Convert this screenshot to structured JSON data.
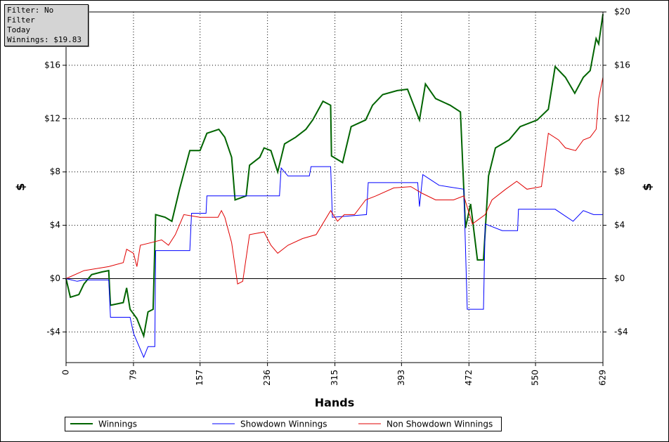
{
  "chart_data": {
    "type": "line",
    "info_box": [
      "Filter: No Filter",
      "Today",
      "Winnings: $19.83"
    ],
    "xlabel": "Hands",
    "ylabel": "$",
    "y2label": "$",
    "xlim": [
      0,
      629
    ],
    "xticks": [
      0,
      79,
      157,
      236,
      315,
      393,
      472,
      550,
      629
    ],
    "ylim": [
      -6.3,
      20
    ],
    "yticks": [
      {
        "value": -4,
        "label": "-$4"
      },
      {
        "value": 0,
        "label": "$0"
      },
      {
        "value": 4,
        "label": "$4"
      },
      {
        "value": 8,
        "label": "$8"
      },
      {
        "value": 12,
        "label": "$12"
      },
      {
        "value": 16,
        "label": "$16"
      },
      {
        "value": 20,
        "label": "$20"
      }
    ],
    "y2lim": [
      -6.3,
      20
    ],
    "y2ticks": [
      {
        "value": -4,
        "label": "-$4"
      },
      {
        "value": 0,
        "label": "$0"
      },
      {
        "value": 4,
        "label": "$4"
      },
      {
        "value": 8,
        "label": "$8"
      },
      {
        "value": 12,
        "label": "$12"
      },
      {
        "value": 16,
        "label": "$16"
      },
      {
        "value": 20,
        "label": "$20"
      }
    ],
    "grid": true,
    "series": [
      {
        "name": "Winnings",
        "color": "#006400",
        "x": [
          0,
          5,
          15,
          21,
          30,
          42,
          50,
          52,
          67,
          71,
          75,
          83,
          91,
          96,
          102,
          105,
          116,
          124,
          133,
          145,
          157,
          165,
          179,
          186,
          194,
          198,
          211,
          215,
          227,
          232,
          240,
          248,
          256,
          269,
          281,
          289,
          301,
          310,
          311,
          324,
          334,
          351,
          359,
          371,
          388,
          400,
          414,
          421,
          433,
          450,
          462,
          468,
          474,
          482,
          489,
          495,
          503,
          519,
          532,
          552,
          565,
          573,
          585,
          596,
          606,
          614,
          621,
          624,
          629
        ],
        "values": [
          0,
          -1.4,
          -1.2,
          -0.4,
          0.3,
          0.5,
          0.6,
          -2,
          -1.8,
          -0.7,
          -2.3,
          -3,
          -4.3,
          -2.5,
          -2.3,
          4.8,
          4.6,
          4.3,
          6.7,
          9.6,
          9.6,
          10.9,
          11.2,
          10.6,
          9.1,
          5.9,
          6.2,
          8.5,
          9.1,
          9.8,
          9.6,
          8,
          10.1,
          10.6,
          11.2,
          11.9,
          13.3,
          13,
          9.2,
          8.7,
          11.4,
          11.9,
          13,
          13.8,
          14.1,
          14.2,
          11.9,
          14.6,
          13.5,
          13,
          12.5,
          3.8,
          5.6,
          1.4,
          1.4,
          7.7,
          9.8,
          10.4,
          11.4,
          11.9,
          12.7,
          15.9,
          15.1,
          13.9,
          15.1,
          15.6,
          18,
          17.6,
          19.83
        ]
      },
      {
        "name": "Showdown Winnings",
        "color": "#0000ff",
        "x": [
          0,
          13,
          21,
          50,
          52,
          75,
          79,
          91,
          96,
          104,
          105,
          145,
          147,
          164,
          165,
          250,
          252,
          260,
          285,
          287,
          310,
          312,
          352,
          354,
          412,
          414,
          418,
          437,
          466,
          470,
          489,
          491,
          511,
          529,
          530,
          573,
          594,
          606,
          618,
          629
        ],
        "values": [
          0,
          -0.2,
          -0.1,
          -0.1,
          -2.9,
          -2.9,
          -4.1,
          -5.9,
          -5.1,
          -5.1,
          2.1,
          2.1,
          4.9,
          4.9,
          6.2,
          6.2,
          8.3,
          7.7,
          7.7,
          8.4,
          8.4,
          4.6,
          4.8,
          7.2,
          7.2,
          5.4,
          7.8,
          7,
          6.7,
          -2.3,
          -2.3,
          4.1,
          3.6,
          3.6,
          5.2,
          5.2,
          4.3,
          5.1,
          4.8,
          4.8
        ]
      },
      {
        "name": "Non Showdown Winnings",
        "color": "#e00000",
        "x": [
          0,
          21,
          50,
          67,
          71,
          79,
          83,
          87,
          100,
          112,
          120,
          128,
          138,
          157,
          178,
          182,
          186,
          194,
          201,
          207,
          215,
          232,
          240,
          248,
          260,
          277,
          293,
          310,
          318,
          326,
          338,
          351,
          363,
          384,
          404,
          417,
          433,
          454,
          466,
          476,
          491,
          499,
          515,
          528,
          540,
          557,
          565,
          577,
          585,
          597,
          606,
          614,
          621,
          624,
          629
        ],
        "values": [
          0,
          0.6,
          0.9,
          1.2,
          2.2,
          1.9,
          0.9,
          2.5,
          2.7,
          2.9,
          2.5,
          3.3,
          4.8,
          4.6,
          4.6,
          5.1,
          4.6,
          2.7,
          -0.4,
          -0.2,
          3.3,
          3.5,
          2.5,
          1.9,
          2.5,
          3,
          3.3,
          5.1,
          4.3,
          4.8,
          4.8,
          5.9,
          6.2,
          6.8,
          6.9,
          6.4,
          5.9,
          5.9,
          6.2,
          4.1,
          4.8,
          5.9,
          6.7,
          7.3,
          6.7,
          6.9,
          10.9,
          10.4,
          9.8,
          9.6,
          10.4,
          10.6,
          11.2,
          13.5,
          15.1
        ]
      }
    ]
  }
}
